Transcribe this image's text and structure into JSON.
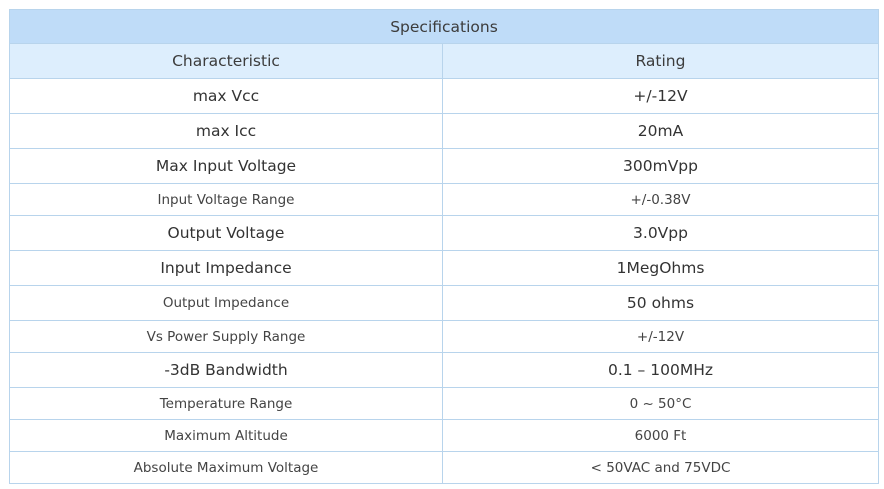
{
  "table": {
    "title": "Specifications",
    "headers": [
      "Characteristic",
      "Rating"
    ],
    "rows": [
      {
        "characteristic": "max Vcc",
        "rating": "+/-12V",
        "size": "big"
      },
      {
        "characteristic": "max Icc",
        "rating": "20mA",
        "size": "big"
      },
      {
        "characteristic": "Max Input Voltage",
        "rating": "300mVpp",
        "size": "big"
      },
      {
        "characteristic": "Input Voltage Range",
        "rating": "+/-0.38V",
        "size": "small"
      },
      {
        "characteristic": "Output Voltage",
        "rating": "3.0Vpp",
        "size": "big"
      },
      {
        "characteristic": "Input Impedance",
        "rating": "1MegOhms",
        "size": "big"
      },
      {
        "characteristic": "Output Impedance",
        "rating": "50 ohms",
        "size": "mixed"
      },
      {
        "characteristic": "Vs Power Supply Range",
        "rating": "+/-12V",
        "size": "small"
      },
      {
        "characteristic": "-3dB Bandwidth",
        "rating": "0.1 – 100MHz",
        "size": "big"
      },
      {
        "characteristic": "Temperature Range",
        "rating": "0 ~ 50°C",
        "size": "small"
      },
      {
        "characteristic": "Maximum Altitude",
        "rating": "6000 Ft",
        "size": "small"
      },
      {
        "characteristic": "Absolute Maximum Voltage",
        "rating": "< 50VAC and 75VDC",
        "size": "small"
      }
    ]
  }
}
